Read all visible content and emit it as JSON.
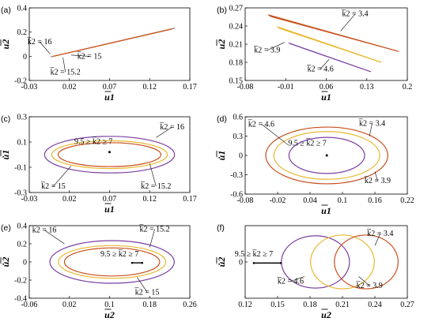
{
  "colors": {
    "k16": "#7b3fa0",
    "k15": "#e8b830",
    "k152": "#c8501e",
    "k34": "#c8501e",
    "k39": "#e8b830",
    "k46": "#7b3fa0",
    "axis": "#000000"
  },
  "chart_data": [
    {
      "panel": "(a)",
      "type": "line",
      "xlabel": "u1",
      "ylabel": "u2",
      "xlim": [
        -0.03,
        0.17
      ],
      "ylim": [
        -0.2,
        0.4
      ],
      "xticks": [
        "-0.03",
        "0.02",
        "0.07",
        "0.12",
        "0.17"
      ],
      "yticks": [
        "-0.2",
        "0",
        "0.2",
        "0.4"
      ],
      "series": [
        {
          "color": "#7b3fa0",
          "points": [
            [
              -0.003,
              -0.005
            ],
            [
              0.151,
              0.232
            ]
          ]
        },
        {
          "color": "#e8b830",
          "points": [
            [
              -0.001,
              -0.002
            ],
            [
              0.149,
              0.228
            ]
          ]
        },
        {
          "color": "#c8501e",
          "points": [
            [
              0.0,
              0.0
            ],
            [
              0.148,
              0.226
            ]
          ]
        }
      ],
      "annotations": [
        {
          "text": "k̅2 = 16",
          "tx": -0.017,
          "ty": 0.1,
          "px": -0.004,
          "py": 0.02
        },
        {
          "text": "k̅2 = 15",
          "tx": 0.045,
          "ty": -0.02,
          "px": 0.022,
          "py": 0.01
        },
        {
          "text": "k̅2 = 15.2",
          "tx": 0.015,
          "ty": -0.15,
          "px": 0.012,
          "py": -0.01
        }
      ]
    },
    {
      "panel": "(b)",
      "type": "line",
      "xlabel": "u1",
      "ylabel": "u2",
      "xlim": [
        -0.08,
        0.2
      ],
      "ylim": [
        0.15,
        0.27
      ],
      "xticks": [
        "-0.08",
        "-0.01",
        "0.06",
        "0.13",
        "0.2"
      ],
      "yticks": [
        "0.15",
        "0.18",
        "0.21",
        "0.24",
        "0.27"
      ],
      "series": [
        {
          "color": "#c8501e",
          "loop": [
            [
              -0.04,
              0.2585
            ],
            [
              0.185,
              0.198
            ],
            [
              -0.035,
              0.2555
            ]
          ]
        },
        {
          "color": "#e8b830",
          "loop": [
            [
              -0.025,
              0.239
            ],
            [
              0.155,
              0.18
            ],
            [
              -0.02,
              0.236
            ]
          ]
        },
        {
          "color": "#7b3fa0",
          "loop": [
            [
              -0.005,
              0.212
            ],
            [
              0.137,
              0.1645
            ],
            [
              0.0,
              0.21
            ]
          ]
        }
      ],
      "annotations": [
        {
          "text": "k̅2 = 3.4",
          "tx": 0.11,
          "ty": 0.256,
          "px": 0.085,
          "py": 0.232
        },
        {
          "text": "k̅2 = 3.9",
          "tx": -0.042,
          "ty": 0.196,
          "px": -0.012,
          "py": 0.213
        },
        {
          "text": "k̅2 = 4.6",
          "tx": 0.05,
          "ty": 0.165,
          "px": 0.065,
          "py": 0.185
        }
      ]
    },
    {
      "panel": "(c)",
      "type": "line",
      "xlabel": "u1",
      "ylabel": "u̇1",
      "xlim": [
        -0.03,
        0.17
      ],
      "ylim": [
        -0.3,
        0.3
      ],
      "xticks": [
        "-0.03",
        "0.02",
        "0.07",
        "0.12",
        "0.17"
      ],
      "yticks": [
        "-0.3",
        "-0.1",
        "0.1",
        "0.3"
      ],
      "ellipses": [
        {
          "color": "#7b3fa0",
          "cx": 0.07,
          "cy": 0,
          "rx": 0.081,
          "ry": 0.145
        },
        {
          "color": "#e8b830",
          "cx": 0.07,
          "cy": 0,
          "rx": 0.072,
          "ry": 0.11
        },
        {
          "color": "#c8501e",
          "cx": 0.07,
          "cy": 0,
          "rx": 0.064,
          "ry": 0.095
        }
      ],
      "point": [
        0.07,
        0.02
      ],
      "annotations": [
        {
          "text": "k̅2 = 16",
          "tx": 0.148,
          "ty": 0.2,
          "px": 0.128,
          "py": 0.135
        },
        {
          "text": "9.5 ≥ k̅2 ≥ 7",
          "tx": 0.05,
          "ty": 0.085,
          "px": null,
          "py": null
        },
        {
          "text": "k̅2 = 15",
          "tx": 0.0,
          "ty": -0.27,
          "px": 0.022,
          "py": -0.09
        },
        {
          "text": "k̅2 = 15.2",
          "tx": 0.128,
          "ty": -0.27,
          "px": 0.12,
          "py": -0.07
        }
      ]
    },
    {
      "panel": "(d)",
      "type": "line",
      "xlabel": "u1",
      "ylabel": "u̇1",
      "xlim": [
        -0.08,
        0.22
      ],
      "ylim": [
        -0.6,
        0.6
      ],
      "xticks": [
        "-0.08",
        "-0.02",
        "0.04",
        "0.1",
        "0.16",
        "0.22"
      ],
      "yticks": [
        "-0.6",
        "-0.3",
        "0",
        "0.3",
        "0.6"
      ],
      "ellipses": [
        {
          "color": "#c8501e",
          "cx": 0.071,
          "cy": 0,
          "rx": 0.113,
          "ry": 0.44
        },
        {
          "color": "#e8b830",
          "cx": 0.071,
          "cy": 0,
          "rx": 0.098,
          "ry": 0.37
        },
        {
          "color": "#7b3fa0",
          "cx": 0.071,
          "cy": 0,
          "rx": 0.07,
          "ry": 0.28
        }
      ],
      "point": [
        0.071,
        0.0
      ],
      "annotations": [
        {
          "text": "k̅2 = 4.6",
          "tx": -0.05,
          "ty": 0.45,
          "px": 0.0,
          "py": 0.16
        },
        {
          "text": "9.5 ≥ k̅2 ≥ 7",
          "tx": 0.035,
          "ty": 0.155,
          "px": null,
          "py": null
        },
        {
          "text": "k̅2 = 3.4",
          "tx": 0.155,
          "ty": 0.46,
          "px": 0.15,
          "py": 0.3
        },
        {
          "text": "k̅2 = 3.9",
          "tx": 0.165,
          "ty": -0.43,
          "px": 0.16,
          "py": -0.25
        }
      ]
    },
    {
      "panel": "(e)",
      "type": "line",
      "xlabel": "u2",
      "ylabel": "u̇2",
      "xlim": [
        -0.06,
        0.26
      ],
      "ylim": [
        -0.4,
        0.4
      ],
      "xticks": [
        "-0.06",
        "0.02",
        "0.1",
        "0.18",
        "0.26"
      ],
      "yticks": [
        "-0.4",
        "-0.2",
        "0",
        "0.2",
        "0.4"
      ],
      "ellipses": [
        {
          "color": "#7b3fa0",
          "cx": 0.105,
          "cy": 0,
          "rx": 0.124,
          "ry": 0.235
        },
        {
          "color": "#e8b830",
          "cx": 0.105,
          "cy": 0,
          "rx": 0.107,
          "ry": 0.18
        },
        {
          "color": "#c8501e",
          "cx": 0.105,
          "cy": 0,
          "rx": 0.095,
          "ry": 0.155
        }
      ],
      "segment": [
        [
          0.145,
          -0.01
        ],
        [
          0.165,
          -0.01
        ]
      ],
      "annotations": [
        {
          "text": "k̅2 = 16",
          "tx": -0.03,
          "ty": 0.325,
          "px": 0.01,
          "py": 0.2
        },
        {
          "text": "k̅2 = 15.2",
          "tx": 0.19,
          "ty": 0.335,
          "px": 0.18,
          "py": 0.16
        },
        {
          "text": "9.5 ≥ k̅2 ≥ 7",
          "tx": 0.12,
          "ty": 0.06,
          "px": null,
          "py": null
        },
        {
          "text": "k̅2 = 15",
          "tx": 0.175,
          "ty": -0.36,
          "px": 0.155,
          "py": -0.17
        }
      ]
    },
    {
      "panel": "(f)",
      "type": "line",
      "xlabel": "u2",
      "ylabel": "u̇2",
      "xlim": [
        0.12,
        0.27
      ],
      "ylim": [
        -1,
        1
      ],
      "xticks": [
        "0.12",
        "0.15",
        "0.18",
        "0.21",
        "0.24",
        "0.27"
      ],
      "yticks": [
        "0"
      ],
      "ellipses": [
        {
          "color": "#7b3fa0",
          "cx": 0.185,
          "cy": 0,
          "rx": 0.0315,
          "ry": 0.72
        },
        {
          "color": "#e8b830",
          "cx": 0.21,
          "cy": 0,
          "rx": 0.0295,
          "ry": 0.74
        },
        {
          "color": "#c8501e",
          "cx": 0.232,
          "cy": 0,
          "rx": 0.0295,
          "ry": 0.74
        }
      ],
      "segment": [
        [
          0.128,
          -0.03
        ],
        [
          0.153,
          -0.03
        ]
      ],
      "annotations": [
        {
          "text": "k̅2 = 3.4",
          "tx": 0.245,
          "ty": 0.72,
          "px": 0.24,
          "py": 0.45
        },
        {
          "text": "9.5 ≥ k̅2 ≥ 7",
          "tx": 0.128,
          "ty": 0.15,
          "px": null,
          "py": null
        },
        {
          "text": "k̅2 = 4.6",
          "tx": 0.162,
          "ty": -0.6,
          "px": 0.175,
          "py": -0.4
        },
        {
          "text": "k̅2 = 3.9",
          "tx": 0.235,
          "ty": -0.72,
          "px": 0.225,
          "py": -0.4
        }
      ]
    }
  ]
}
